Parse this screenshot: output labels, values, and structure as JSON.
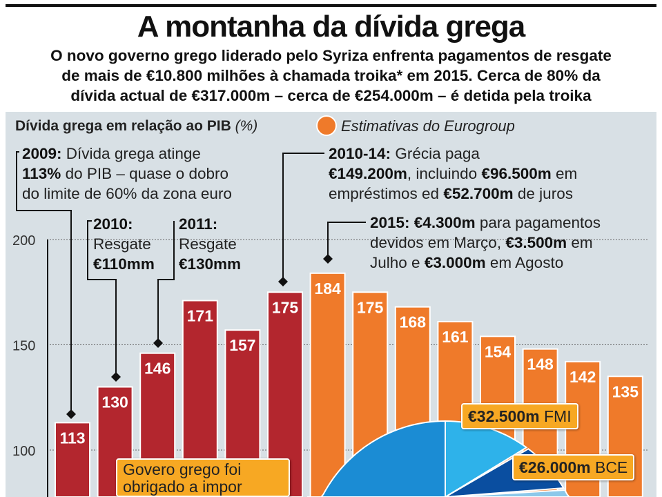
{
  "title": "A montanha da dívida grega",
  "subtitle": [
    "O novo governo grego liderado pelo Syriza enfrenta pagamentos de resgate",
    "de mais de €10.800 milhões à chamada troika* em 2015. Cerca de 80% da",
    "dívida actual de €317.000m – cerca de €254.000m – é detida pela troika"
  ],
  "chart_data": {
    "type": "bar",
    "title": "Dívida grega em relação ao PIB",
    "unit": "(%)",
    "legend": {
      "label": "Estimativas do Eurogroup",
      "color": "#ef7a2a"
    },
    "yticks": [
      100,
      150,
      200
    ],
    "values": [
      113,
      130,
      146,
      171,
      157,
      175,
      184,
      175,
      168,
      161,
      154,
      148,
      142,
      135
    ],
    "estimate": [
      false,
      false,
      false,
      false,
      false,
      false,
      true,
      true,
      true,
      true,
      true,
      true,
      true,
      true
    ],
    "colors": {
      "actual": "#b3262e",
      "estimate": "#ef7a2a"
    },
    "grid": true
  },
  "annotations": {
    "a2009": {
      "bold": "2009:",
      "l1": " Dívida grega atinge",
      "bold2": "113%",
      "l2": " do PIB – quase o dobro",
      "l3": "do limite de 60% da zona euro"
    },
    "a2010": {
      "bold": "2010:",
      "l2": "Resgate",
      "bold3": "€110mm"
    },
    "a2011": {
      "bold": "2011:",
      "l2": "Resgate",
      "bold3": "€130mm"
    },
    "a1014": {
      "bold": "2010-14:",
      "l1": " Grécia paga",
      "bold2": "€149.200m",
      "l2": ", incluindo ",
      "bold3": "€96.500m",
      "l3": " em",
      "l4": "empréstimos ed ",
      "bold4": "€52.700m",
      "l5": " de juros"
    },
    "a2015": {
      "bold": "2015: €4.300m",
      "l1": " para pagamentos",
      "l2": "devidos em Março, ",
      "bold2": "€3.500m",
      "l3": " em",
      "l4": "Julho e ",
      "bold3": "€3.000m",
      "l5": " em Agosto"
    }
  },
  "callout": {
    "l1": "Govero grego foi",
    "l2": "obrigado a impor"
  },
  "pie_labels": {
    "fmi_value": "€32.500m",
    "fmi": "FMI",
    "bce_value": "€26.000m",
    "bce": "BCE"
  }
}
